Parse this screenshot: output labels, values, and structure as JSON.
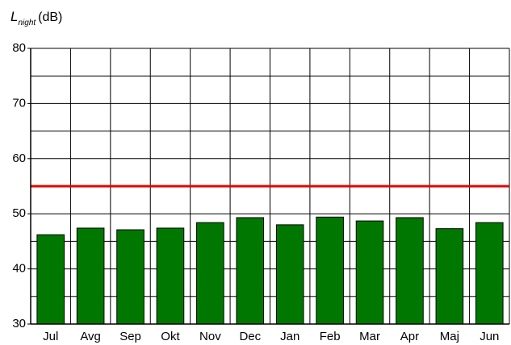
{
  "chart_data": {
    "type": "bar",
    "ylabel": {
      "main": "L",
      "sub": "night",
      "unit": "(dB)"
    },
    "categories": [
      "Jul",
      "Avg",
      "Sep",
      "Okt",
      "Nov",
      "Dec",
      "Jan",
      "Feb",
      "Mar",
      "Apr",
      "Maj",
      "Jun"
    ],
    "values": [
      46.2,
      47.4,
      47.1,
      47.4,
      48.4,
      49.3,
      48.0,
      49.4,
      48.7,
      49.3,
      47.3,
      48.4
    ],
    "color": "#007800",
    "ylim": [
      30,
      80
    ],
    "yticks": [
      30,
      40,
      50,
      60,
      70,
      80
    ],
    "minor_yticks": [
      35,
      45,
      55,
      65,
      75
    ],
    "grid": true,
    "reference_line": {
      "value": 55,
      "color": "#e00000"
    }
  }
}
